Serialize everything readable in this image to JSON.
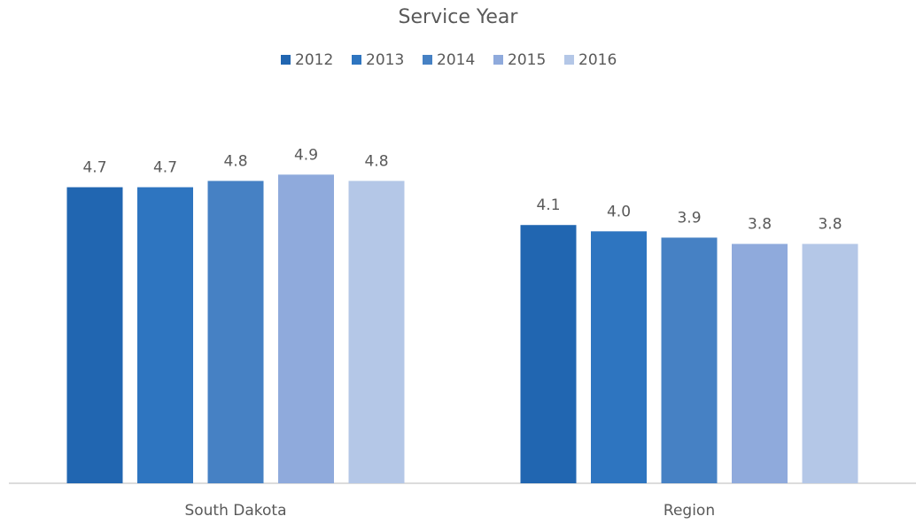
{
  "chart_data": {
    "type": "bar",
    "title": "Service Year",
    "categories": [
      "South Dakota",
      "Region"
    ],
    "series": [
      {
        "name": "2012",
        "color": "#2166b1",
        "values": [
          4.7,
          4.1
        ],
        "value_labels": [
          "4.7",
          "4.1"
        ]
      },
      {
        "name": "2013",
        "color": "#2e75c0",
        "values": [
          4.7,
          4.0
        ],
        "value_labels": [
          "4.7",
          "4.0"
        ]
      },
      {
        "name": "2014",
        "color": "#4681c4",
        "values": [
          4.8,
          3.9
        ],
        "value_labels": [
          "4.8",
          "3.9"
        ]
      },
      {
        "name": "2015",
        "color": "#8faadc",
        "values": [
          4.9,
          3.8
        ],
        "value_labels": [
          "4.9",
          "3.8"
        ]
      },
      {
        "name": "2016",
        "color": "#b4c7e7",
        "values": [
          4.8,
          3.8
        ],
        "value_labels": [
          "4.8",
          "3.8"
        ]
      }
    ],
    "ylim": [
      0,
      6
    ],
    "legend": "top"
  }
}
